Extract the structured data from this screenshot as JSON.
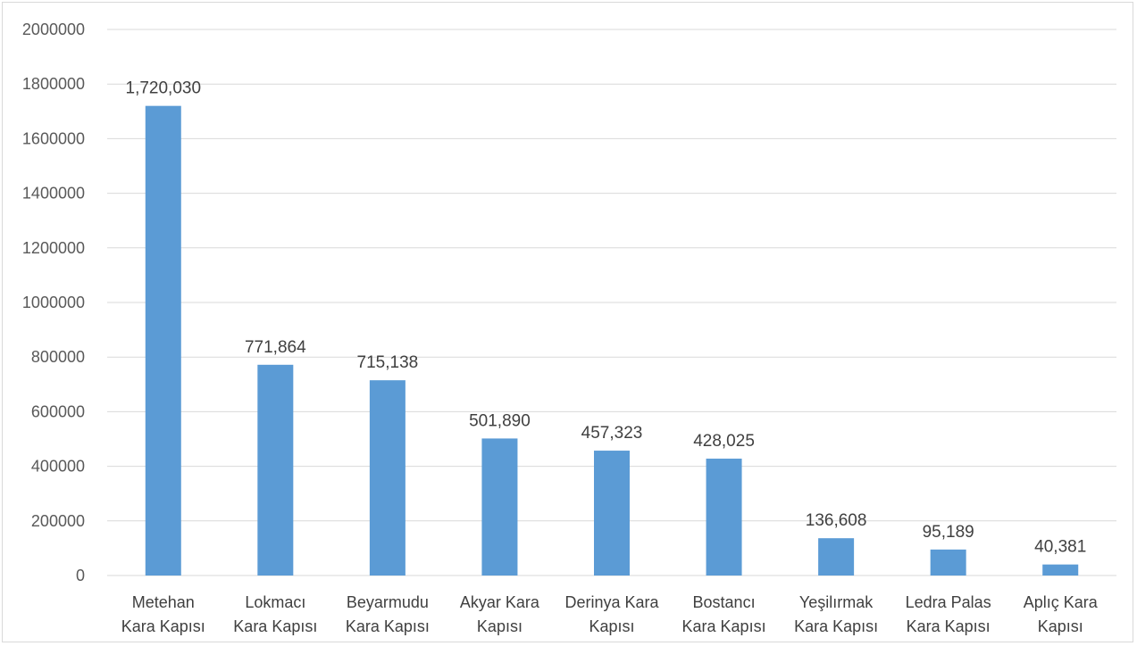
{
  "chart_data": {
    "type": "bar",
    "title": "",
    "xlabel": "",
    "ylabel": "",
    "ylim": [
      0,
      2000000
    ],
    "yticks": [
      0,
      200000,
      400000,
      600000,
      800000,
      1000000,
      1200000,
      1400000,
      1600000,
      1800000,
      2000000
    ],
    "grid": true,
    "legend": "none",
    "bar_color": "#5B9BD5",
    "categories": [
      [
        "Metehan",
        "Kara Kapısı"
      ],
      [
        "Lokmacı",
        "Kara Kapısı"
      ],
      [
        "Beyarmudu",
        "Kara Kapısı"
      ],
      [
        "Akyar Kara",
        "Kapısı"
      ],
      [
        "Derinya Kara",
        "Kapısı"
      ],
      [
        "Bostancı",
        "Kara Kapısı"
      ],
      [
        "Yeşilırmak",
        "Kara Kapısı"
      ],
      [
        "Ledra Palas",
        "Kara Kapısı"
      ],
      [
        "Aplıç Kara",
        "Kapısı"
      ]
    ],
    "values": [
      1720030,
      771864,
      715138,
      501890,
      457323,
      428025,
      136608,
      95189,
      40381
    ],
    "data_labels": [
      "1,720,030",
      "771,864",
      "715,138",
      "501,890",
      "457,323",
      "428,025",
      "136,608",
      "95,189",
      "40,381"
    ]
  }
}
